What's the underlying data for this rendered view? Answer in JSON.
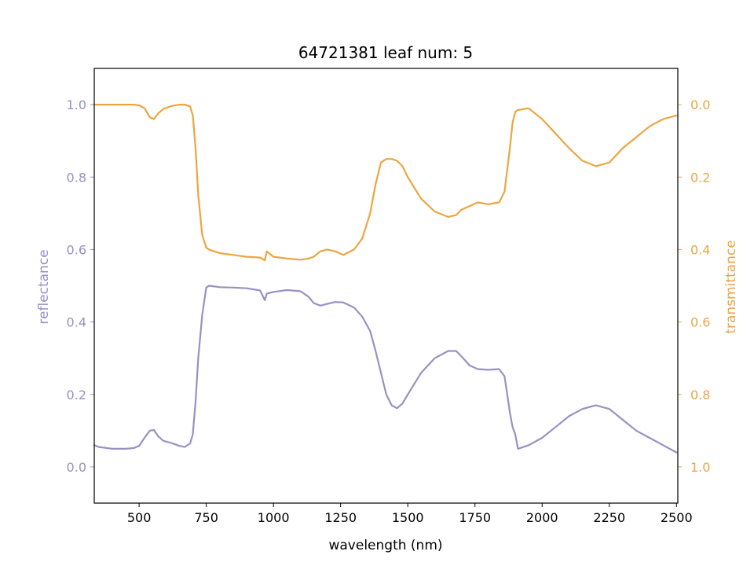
{
  "chart_data": {
    "type": "line",
    "title": "64721381 leaf num: 5",
    "xlabel": "wavelength (nm)",
    "ylabel_left": "reflectance",
    "ylabel_right": "transmittance",
    "xlim": [
      333,
      2505
    ],
    "ylim_left": [
      -0.1,
      1.1
    ],
    "ylim_right": [
      1.1,
      -0.1
    ],
    "right_axis_inverted": true,
    "x_ticks": [
      500,
      750,
      1000,
      1250,
      1500,
      1750,
      2000,
      2250,
      2500
    ],
    "x_tick_labels": [
      "500",
      "750",
      "1000",
      "1250",
      "1500",
      "1750",
      "2000",
      "2250",
      "2500"
    ],
    "y_left_ticks": [
      0.0,
      0.2,
      0.4,
      0.6,
      0.8,
      1.0
    ],
    "y_left_tick_labels": [
      "0.0",
      "0.2",
      "0.4",
      "0.6",
      "0.8",
      "1.0"
    ],
    "y_right_ticks": [
      0.0,
      0.2,
      0.4,
      0.6,
      0.8,
      1.0
    ],
    "y_right_tick_labels": [
      "0.0",
      "0.2",
      "0.4",
      "0.6",
      "0.8",
      "1.0"
    ],
    "grid": false,
    "series": [
      {
        "axis": "left",
        "color": "#9891c4",
        "x": [
          333,
          350,
          400,
          450,
          480,
          500,
          520,
          540,
          555,
          570,
          590,
          620,
          650,
          670,
          690,
          700,
          710,
          720,
          735,
          750,
          760,
          780,
          800,
          850,
          900,
          950,
          968,
          975,
          1000,
          1050,
          1100,
          1130,
          1150,
          1175,
          1200,
          1230,
          1260,
          1300,
          1330,
          1360,
          1380,
          1400,
          1420,
          1440,
          1460,
          1480,
          1500,
          1550,
          1600,
          1650,
          1680,
          1700,
          1730,
          1760,
          1800,
          1840,
          1860,
          1880,
          1890,
          1900,
          1910,
          1950,
          2000,
          2050,
          2100,
          2150,
          2200,
          2250,
          2300,
          2350,
          2400,
          2450,
          2500
        ],
        "y": [
          0.06,
          0.055,
          0.05,
          0.05,
          0.052,
          0.058,
          0.08,
          0.1,
          0.102,
          0.085,
          0.072,
          0.066,
          0.058,
          0.055,
          0.065,
          0.09,
          0.18,
          0.3,
          0.42,
          0.495,
          0.5,
          0.498,
          0.496,
          0.495,
          0.493,
          0.487,
          0.46,
          0.478,
          0.483,
          0.488,
          0.485,
          0.47,
          0.452,
          0.445,
          0.45,
          0.455,
          0.454,
          0.44,
          0.415,
          0.375,
          0.32,
          0.26,
          0.2,
          0.17,
          0.162,
          0.175,
          0.2,
          0.26,
          0.3,
          0.32,
          0.32,
          0.305,
          0.28,
          0.27,
          0.268,
          0.27,
          0.25,
          0.15,
          0.11,
          0.09,
          0.05,
          0.06,
          0.08,
          0.11,
          0.14,
          0.16,
          0.17,
          0.16,
          0.13,
          0.1,
          0.08,
          0.06,
          0.04
        ]
      },
      {
        "axis": "right",
        "color": "#eca542",
        "x": [
          333,
          350,
          400,
          450,
          480,
          500,
          520,
          540,
          555,
          570,
          590,
          620,
          650,
          670,
          690,
          700,
          710,
          720,
          735,
          750,
          760,
          780,
          800,
          850,
          900,
          950,
          968,
          975,
          1000,
          1050,
          1100,
          1130,
          1150,
          1175,
          1200,
          1230,
          1260,
          1300,
          1330,
          1360,
          1380,
          1400,
          1420,
          1440,
          1460,
          1480,
          1500,
          1550,
          1600,
          1650,
          1680,
          1700,
          1730,
          1760,
          1800,
          1840,
          1860,
          1880,
          1890,
          1900,
          1910,
          1950,
          2000,
          2050,
          2100,
          2150,
          2200,
          2250,
          2300,
          2350,
          2400,
          2450,
          2500
        ],
        "y": [
          0.0,
          0.0,
          0.0,
          0.0,
          0.0,
          0.002,
          0.01,
          0.035,
          0.04,
          0.025,
          0.012,
          0.004,
          0.0,
          0.0,
          0.005,
          0.03,
          0.12,
          0.25,
          0.36,
          0.395,
          0.4,
          0.405,
          0.41,
          0.415,
          0.42,
          0.422,
          0.43,
          0.405,
          0.42,
          0.425,
          0.428,
          0.425,
          0.42,
          0.405,
          0.4,
          0.405,
          0.415,
          0.4,
          0.37,
          0.3,
          0.22,
          0.16,
          0.15,
          0.15,
          0.155,
          0.17,
          0.2,
          0.26,
          0.295,
          0.31,
          0.305,
          0.29,
          0.28,
          0.27,
          0.275,
          0.27,
          0.24,
          0.12,
          0.05,
          0.02,
          0.015,
          0.01,
          0.04,
          0.08,
          0.12,
          0.155,
          0.17,
          0.16,
          0.12,
          0.09,
          0.06,
          0.04,
          0.03
        ]
      }
    ]
  }
}
